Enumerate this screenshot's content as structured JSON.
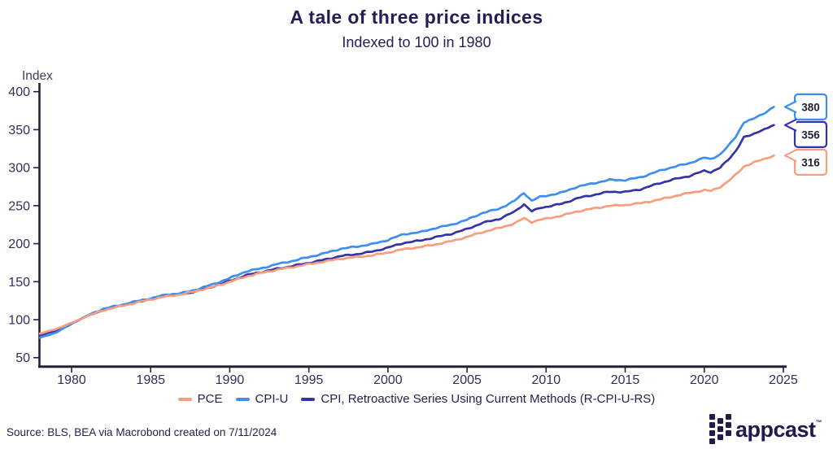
{
  "header": {
    "title": "A tale of three price indices",
    "subtitle": "Indexed to 100 in 1980"
  },
  "footer": {
    "source": "Source: BLS, BEA via Macrobond created on 7/11/2024",
    "brand": "appcast",
    "brand_tm": "™"
  },
  "colors": {
    "pce": "#F89E7E",
    "cpi_u": "#3E8EF0",
    "r_cpi_u_rs": "#3732A8",
    "axis": "#21213A",
    "tick_text": "#312F5E",
    "callout_text": "#1E1E38"
  },
  "chart_data": {
    "type": "line",
    "title": "A tale of three price indices",
    "subtitle": "Indexed to 100 in 1980",
    "xlabel": "",
    "ylabel": "Index",
    "ylim": [
      50,
      400
    ],
    "xlim": [
      1978,
      2025.6
    ],
    "y_ticks": [
      50,
      100,
      150,
      200,
      250,
      300,
      350,
      400
    ],
    "x_ticks": [
      1980,
      1985,
      1990,
      1995,
      2000,
      2005,
      2010,
      2015,
      2020,
      2025
    ],
    "grid": false,
    "legend_position": "bottom",
    "x": [
      1978,
      1979,
      1980,
      1981,
      1982,
      1983,
      1984,
      1985,
      1986,
      1987,
      1988,
      1989,
      1990,
      1991,
      1992,
      1993,
      1994,
      1995,
      1996,
      1997,
      1998,
      1999,
      2000,
      2001,
      2002,
      2003,
      2004,
      2005,
      2006,
      2007,
      2008,
      2008.6,
      2009.1,
      2009.6,
      2010,
      2011,
      2012,
      2013,
      2014,
      2015,
      2016,
      2017,
      2018,
      2019,
      2020,
      2020.4,
      2021,
      2021.5,
      2022,
      2022.5,
      2023,
      2023.5,
      2024,
      2024.4
    ],
    "series": [
      {
        "key": "pce",
        "name": "PCE",
        "color": "#F89E7E",
        "end_label": "316",
        "values": [
          81.6,
          87.5,
          95.8,
          104.7,
          112.3,
          117.3,
          121.9,
          126.6,
          130.5,
          133.5,
          138.3,
          143.5,
          149.8,
          156.5,
          161.6,
          165.7,
          169.3,
          172.9,
          176.6,
          180.2,
          182.3,
          184.6,
          188.3,
          192.8,
          195.4,
          199.0,
          203.2,
          208.8,
          215.3,
          220.4,
          226.6,
          233.5,
          228.5,
          231.5,
          232.8,
          236.9,
          242.6,
          246.3,
          249.8,
          250.9,
          253.4,
          257.2,
          262.1,
          266.4,
          270.5,
          269.3,
          274.5,
          282.0,
          290.8,
          301.5,
          305.7,
          309.5,
          313.0,
          316.0
        ]
      },
      {
        "key": "cpi-u",
        "name": "CPI-U",
        "color": "#3E8EF0",
        "end_label": "380",
        "values": [
          76.1,
          82.9,
          94.4,
          105.6,
          114.4,
          118.7,
          123.7,
          128.0,
          133.0,
          134.9,
          140.4,
          147.0,
          154.6,
          163.3,
          167.6,
          173.1,
          177.4,
          182.4,
          187.4,
          193.1,
          196.1,
          199.4,
          204.9,
          212.5,
          214.9,
          220.5,
          224.8,
          231.4,
          240.7,
          245.6,
          256.2,
          266.9,
          256.5,
          261.5,
          263.0,
          267.2,
          275.1,
          279.5,
          283.9,
          283.6,
          287.5,
          294.7,
          300.8,
          305.5,
          313.1,
          311.2,
          317.5,
          328.0,
          341.1,
          359.6,
          363.1,
          368.8,
          374.3,
          380.0
        ]
      },
      {
        "key": "r-cpi-u-rs",
        "name": "CPI, Retroactive Series Using Current Methods (R-CPI-U-RS)",
        "color": "#3732A8",
        "end_label": "356",
        "values": [
          79.5,
          85.8,
          95.2,
          104.9,
          112.5,
          118.0,
          122.6,
          127.2,
          131.5,
          133.3,
          138.1,
          144.0,
          150.9,
          158.3,
          162.7,
          167.0,
          170.7,
          174.7,
          179.0,
          183.6,
          186.2,
          189.5,
          194.8,
          201.0,
          203.9,
          208.4,
          212.9,
          219.2,
          227.5,
          232.3,
          242.0,
          252.0,
          242.5,
          247.0,
          248.5,
          252.5,
          260.0,
          264.2,
          268.3,
          268.1,
          271.7,
          278.5,
          284.3,
          288.7,
          295.9,
          294.1,
          300.0,
          310.0,
          322.4,
          339.8,
          343.1,
          348.5,
          352.0,
          356.0
        ]
      }
    ]
  }
}
